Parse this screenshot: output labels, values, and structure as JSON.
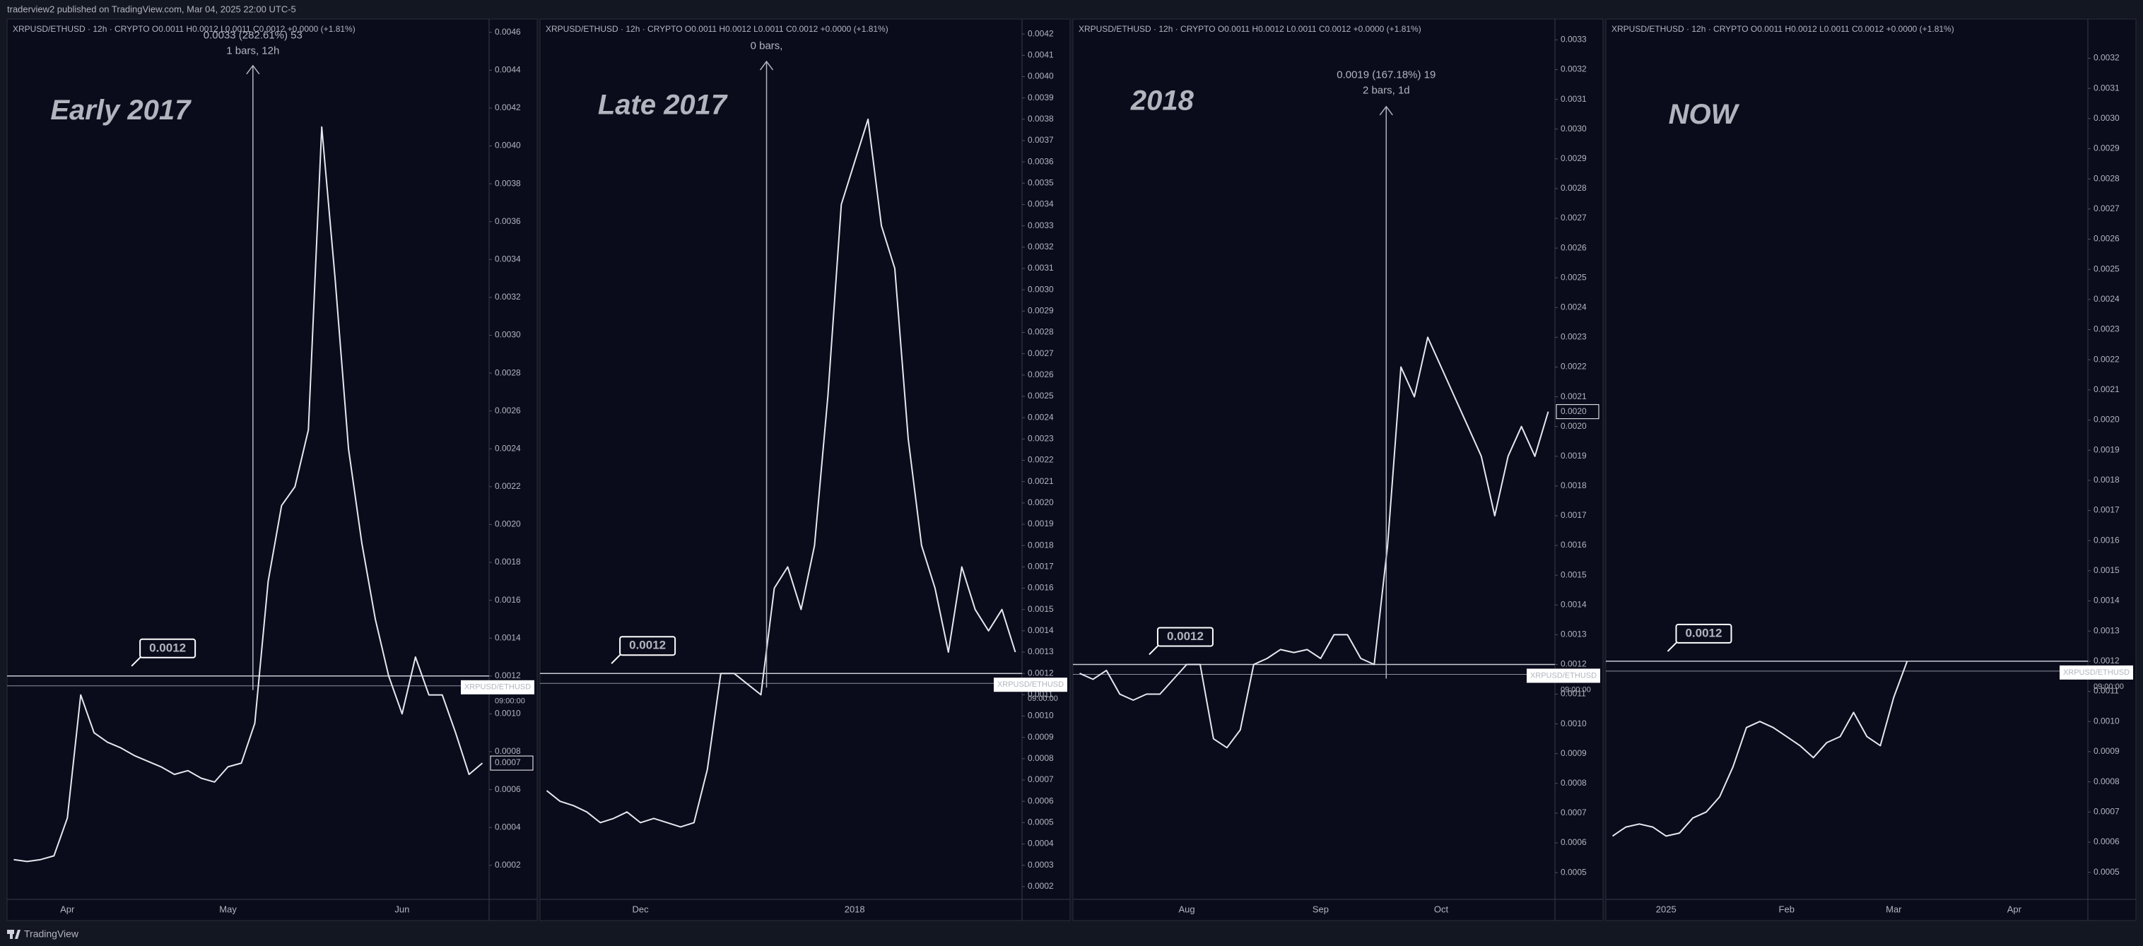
{
  "header": {
    "text": "traderview2 published on TradingView.com, Mar 04, 2025 22:00 UTC-5"
  },
  "footer": {
    "brand": "TradingView"
  },
  "chart_data": [
    {
      "type": "line",
      "title": "Early 2017",
      "legend": "XRPUSD/ETHUSD · 12h · CRYPTO  O0.0011  H0.0012  L0.0011  C0.0012  +0.0000 (+1.81%)",
      "measure": [
        "0.0033 (282.61%) 53",
        "1 bars, 12h"
      ],
      "level": {
        "value": 0.0012,
        "label": "0.0012"
      },
      "symbol_tag": "XRPUSD/ETHUSD",
      "countdown": "09:00:00",
      "price_label": "0.0007",
      "color": "#e6e8ee",
      "categories": [
        null,
        null,
        null,
        null,
        "Apr",
        null,
        null,
        null,
        null,
        null,
        null,
        null,
        null,
        null,
        null,
        null,
        "May",
        null,
        null,
        null,
        null,
        null,
        null,
        null,
        null,
        null,
        null,
        null,
        null,
        "Jun",
        null,
        null,
        null,
        null,
        null,
        null
      ],
      "values": [
        0.00023,
        0.00022,
        0.00023,
        0.00025,
        0.00045,
        0.0011,
        0.0009,
        0.00085,
        0.00082,
        0.00078,
        0.00075,
        0.00072,
        0.00068,
        0.0007,
        0.00066,
        0.00064,
        0.00072,
        0.00074,
        0.00095,
        0.0017,
        0.0021,
        0.0022,
        0.0025,
        0.0041,
        0.0033,
        0.0024,
        0.0019,
        0.0015,
        0.0012,
        0.001,
        0.0013,
        0.0011,
        0.0011,
        0.0009,
        0.00068,
        0.00074
      ],
      "ylim": [
        2e-05,
        0.00467
      ],
      "yticks": [
        0.0002,
        0.0004,
        0.0006,
        0.0008,
        {
          "value": 0.001,
          "label": "0.0010"
        },
        0.0012,
        0.0014,
        0.0016,
        0.0018,
        {
          "value": 0.002,
          "label": "0.0020"
        },
        0.0022,
        0.0024,
        0.0026,
        0.0028,
        {
          "value": 0.003,
          "label": "0.0030"
        },
        0.0032,
        0.0034,
        0.0036,
        0.0038,
        {
          "value": 0.004,
          "label": "0.0040"
        },
        0.0042,
        0.0044,
        0.0046
      ]
    },
    {
      "type": "line",
      "title": "Late 2017",
      "legend": "XRPUSD/ETHUSD · 12h · CRYPTO  O0.0011  H0.0012  L0.0011  C0.0012  +0.0000 (+1.81%)",
      "measure": [
        "0 bars,"
      ],
      "level": {
        "value": 0.0012,
        "label": "0.0012"
      },
      "symbol_tag": "XRPUSD/ETHUSD",
      "countdown": "09:00:00",
      "color": "#e6e8ee",
      "categories": [
        null,
        null,
        null,
        null,
        null,
        null,
        null,
        "Dec",
        null,
        null,
        null,
        null,
        null,
        null,
        null,
        null,
        null,
        null,
        null,
        null,
        null,
        null,
        null,
        "2018",
        null,
        null,
        null,
        null,
        null,
        null,
        null,
        null,
        null,
        null,
        null,
        null
      ],
      "values": [
        0.00065,
        0.0006,
        0.00058,
        0.00055,
        0.0005,
        0.00052,
        0.00055,
        0.0005,
        0.00052,
        0.0005,
        0.00048,
        0.0005,
        0.00075,
        0.0012,
        0.0012,
        0.00115,
        0.0011,
        0.0016,
        0.0017,
        0.0015,
        0.0018,
        0.0025,
        0.0034,
        0.0036,
        0.0038,
        0.0033,
        0.0031,
        0.0023,
        0.0018,
        0.0016,
        0.0013,
        0.0017,
        0.0015,
        0.0014,
        0.0015,
        0.0013
      ],
      "ylim": [
        0.00014,
        0.00427
      ],
      "yticks": [
        0.0002,
        0.0003,
        0.0004,
        0.0005,
        0.0006,
        0.0007,
        0.0008,
        0.0009,
        {
          "value": 0.001,
          "label": "0.0010"
        },
        0.0011,
        0.0012,
        0.0013,
        0.0014,
        0.0015,
        0.0016,
        0.0017,
        0.0018,
        0.0019,
        {
          "value": 0.002,
          "label": "0.0020"
        },
        0.0021,
        0.0022,
        0.0023,
        0.0024,
        0.0025,
        0.0026,
        0.0027,
        0.0028,
        0.0029,
        {
          "value": 0.003,
          "label": "0.0030"
        },
        0.0031,
        0.0032,
        0.0033,
        0.0034,
        0.0035,
        0.0036,
        0.0037,
        0.0038,
        0.0039,
        {
          "value": 0.004,
          "label": "0.0040"
        },
        0.0041,
        0.0042
      ]
    },
    {
      "type": "line",
      "title": "2018",
      "legend": "XRPUSD/ETHUSD · 12h · CRYPTO  O0.0011  H0.0012  L0.0011  C0.0012  +0.0000 (+1.81%)",
      "measure": [
        "0.0019 (167.18%) 19",
        "2 bars, 1d"
      ],
      "level": {
        "value": 0.0012,
        "label": "0.0012"
      },
      "symbol_tag": "XRPUSD/ETHUSD",
      "countdown": "09:00:00",
      "price_label": "0.0020",
      "color": "#e6e8ee",
      "categories": [
        null,
        null,
        null,
        null,
        null,
        null,
        null,
        null,
        "Aug",
        null,
        null,
        null,
        null,
        null,
        null,
        null,
        null,
        null,
        "Sep",
        null,
        null,
        null,
        null,
        null,
        null,
        null,
        null,
        "Oct",
        null,
        null,
        null,
        null,
        null,
        null,
        null,
        null
      ],
      "values": [
        0.00117,
        0.00115,
        0.00118,
        0.0011,
        0.00108,
        0.0011,
        0.0011,
        0.00115,
        0.0012,
        0.0012,
        0.00095,
        0.00092,
        0.00098,
        0.0012,
        0.00122,
        0.00125,
        0.00124,
        0.00125,
        0.00122,
        0.0013,
        0.0013,
        0.00122,
        0.0012,
        0.0016,
        0.0022,
        0.0021,
        0.0023,
        0.0022,
        0.0021,
        0.002,
        0.0019,
        0.0017,
        0.0019,
        0.002,
        0.0019,
        0.00205
      ],
      "ylim": [
        0.00041,
        0.00337
      ],
      "yticks": [
        0.0005,
        0.0006,
        0.0007,
        0.0008,
        0.0009,
        {
          "value": 0.001,
          "label": "0.0010"
        },
        0.0011,
        0.0012,
        0.0013,
        0.0014,
        0.0015,
        0.0016,
        0.0017,
        0.0018,
        0.0019,
        {
          "value": 0.002,
          "label": "0.0020"
        },
        0.0021,
        0.0022,
        0.0023,
        0.0024,
        0.0025,
        0.0026,
        0.0027,
        0.0028,
        0.0029,
        {
          "value": 0.003,
          "label": "0.0030"
        },
        0.0031,
        0.0032,
        0.0033
      ]
    },
    {
      "type": "line",
      "title": "NOW",
      "legend": "XRPUSD/ETHUSD · 12h · CRYPTO  O0.0011  H0.0012  L0.0011  C0.0012  +0.0000 (+1.81%)",
      "level": {
        "value": 0.0012,
        "label": "0.0012"
      },
      "symbol_tag": "XRPUSD/ETHUSD",
      "countdown": "09:00:00",
      "color": "#e6e8ee",
      "categories": [
        null,
        null,
        null,
        null,
        "2025",
        null,
        null,
        null,
        null,
        null,
        null,
        null,
        null,
        "Feb",
        null,
        null,
        null,
        null,
        null,
        null,
        null,
        "Mar",
        null,
        null,
        null,
        null,
        null,
        null,
        null,
        null,
        "Apr",
        null,
        null,
        null,
        null,
        null
      ],
      "values": [
        0.00062,
        0.00065,
        0.00066,
        0.00065,
        0.00062,
        0.00063,
        0.00068,
        0.0007,
        0.00075,
        0.00085,
        0.00098,
        0.001,
        0.00098,
        0.00095,
        0.00092,
        0.00088,
        0.00093,
        0.00095,
        0.00103,
        0.00095,
        0.00092,
        0.00108,
        0.0012,
        null,
        null,
        null,
        null,
        null,
        null,
        null,
        null,
        null,
        null,
        null,
        null,
        null
      ],
      "ylim": [
        0.00041,
        0.00333
      ],
      "yticks": [
        0.0005,
        0.0006,
        0.0007,
        0.0008,
        0.0009,
        {
          "value": 0.001,
          "label": "0.0010"
        },
        0.0011,
        0.0012,
        0.0013,
        0.0014,
        0.0015,
        0.0016,
        0.0017,
        0.0018,
        0.0019,
        {
          "value": 0.002,
          "label": "0.0020"
        },
        0.0021,
        0.0022,
        0.0023,
        0.0024,
        0.0025,
        0.0026,
        0.0027,
        0.0028,
        0.0029,
        {
          "value": 0.003,
          "label": "0.0030"
        },
        0.0031,
        0.0032
      ]
    }
  ]
}
